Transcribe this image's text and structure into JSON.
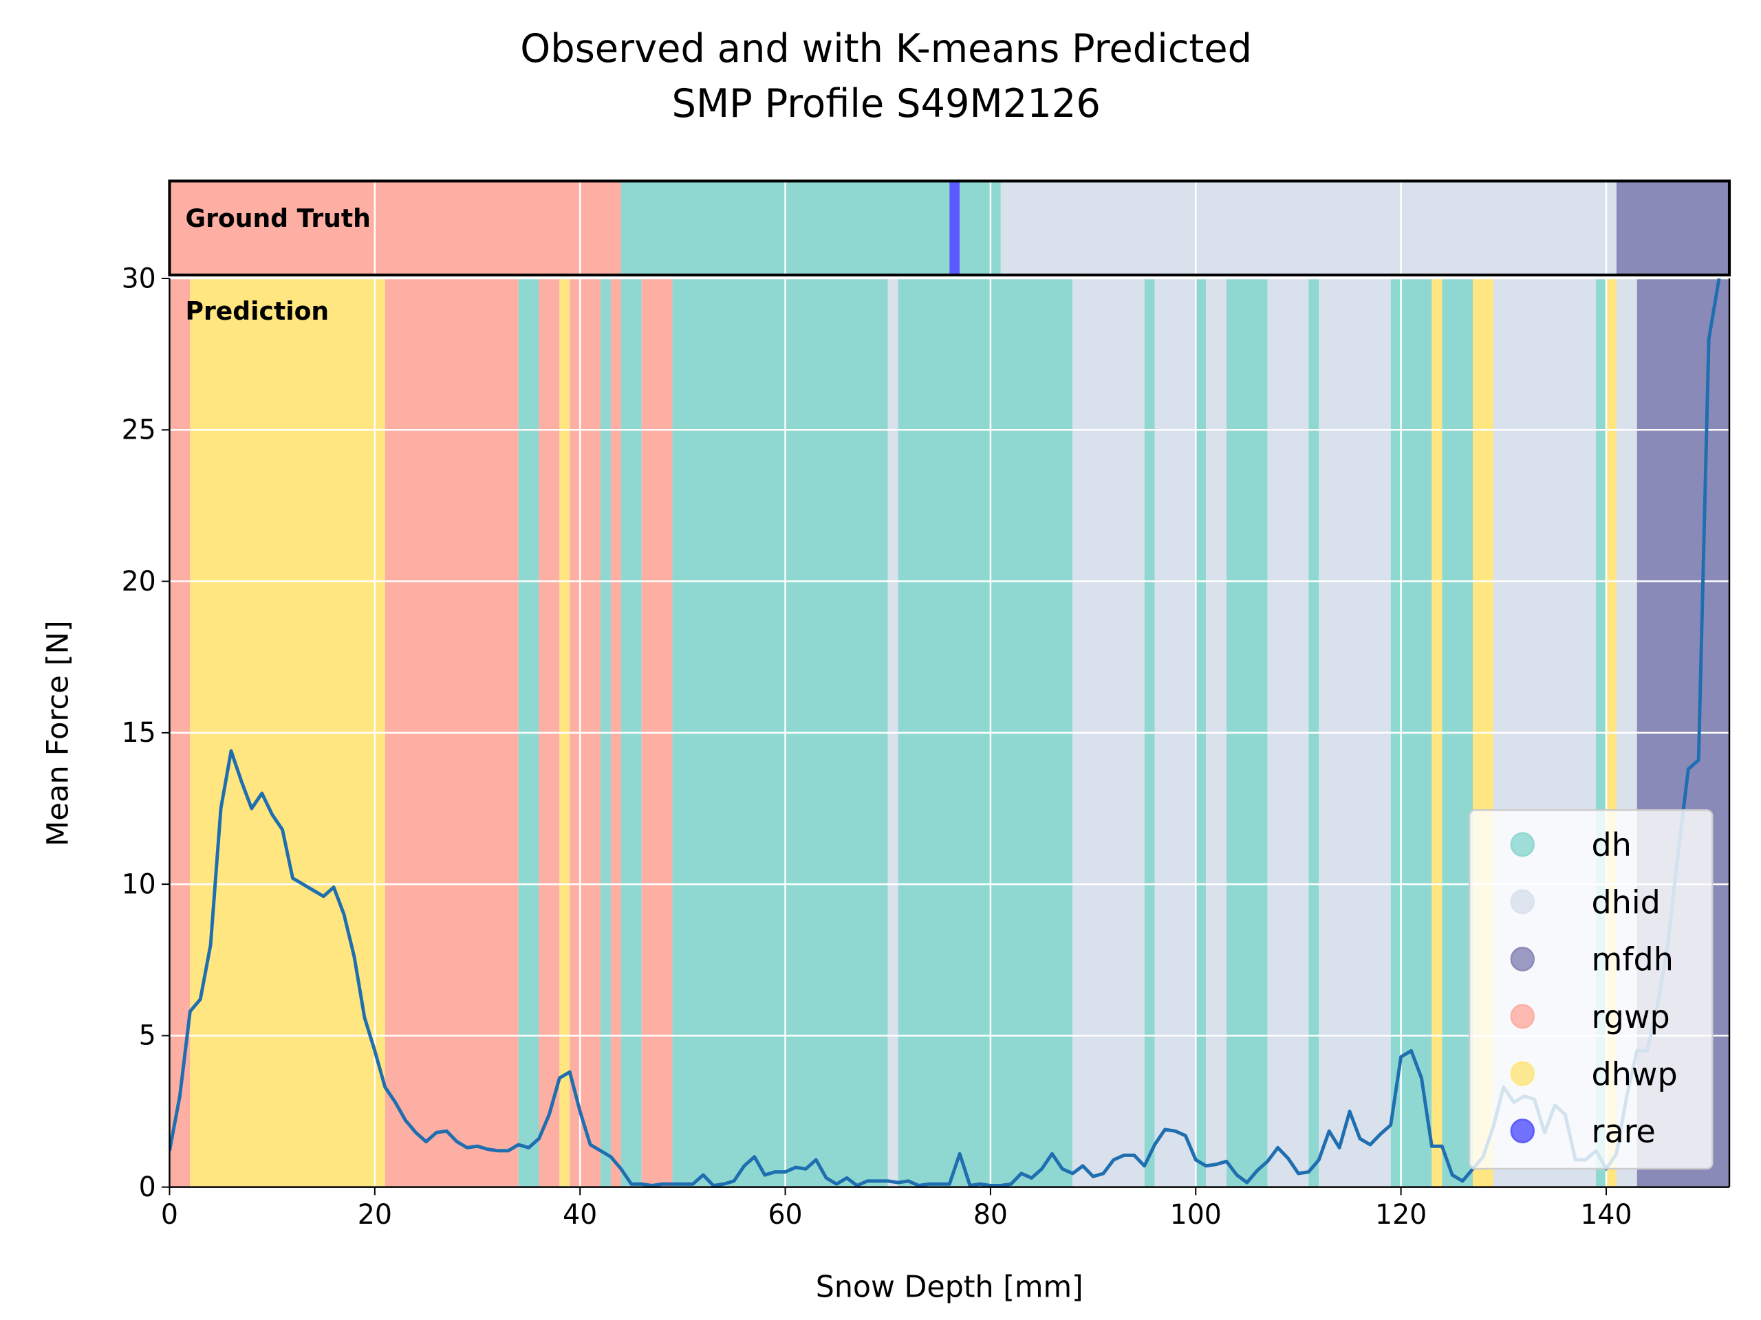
{
  "chart_data": {
    "type": "line",
    "title": [
      "Observed and with K-means Predicted",
      "SMP Profile S49M2126"
    ],
    "xlabel": "Snow Depth [mm]",
    "ylabel": "Mean Force [N]",
    "ground_truth_label": "Ground Truth",
    "prediction_label": "Prediction",
    "xlim": [
      0,
      152
    ],
    "ylim": [
      0,
      30
    ],
    "xticks": [
      0,
      20,
      40,
      60,
      80,
      100,
      120,
      140
    ],
    "yticks": [
      0,
      5,
      10,
      15,
      20,
      25,
      30
    ],
    "grid": true,
    "legend": "lower right",
    "line_color": "#1f6fb0",
    "x": [
      0,
      1,
      2,
      3,
      4,
      5,
      6,
      7,
      8,
      9,
      10,
      11,
      12,
      13,
      14,
      15,
      16,
      17,
      18,
      19,
      20,
      21,
      22,
      23,
      24,
      25,
      26,
      27,
      28,
      29,
      30,
      31,
      32,
      33,
      34,
      35,
      36,
      37,
      38,
      39,
      40,
      41,
      42,
      43,
      44,
      45,
      46,
      47,
      48,
      49,
      50,
      51,
      52,
      53,
      54,
      55,
      56,
      57,
      58,
      59,
      60,
      61,
      62,
      63,
      64,
      65,
      66,
      67,
      68,
      69,
      70,
      71,
      72,
      73,
      74,
      75,
      76,
      77,
      78,
      79,
      80,
      81,
      82,
      83,
      84,
      85,
      86,
      87,
      88,
      89,
      90,
      91,
      92,
      93,
      94,
      95,
      96,
      97,
      98,
      99,
      100,
      101,
      102,
      103,
      104,
      105,
      106,
      107,
      108,
      109,
      110,
      111,
      112,
      113,
      114,
      115,
      116,
      117,
      118,
      119,
      120,
      121,
      122,
      123,
      124,
      125,
      126,
      127,
      128,
      129,
      130,
      131,
      132,
      133,
      134,
      135,
      136,
      137,
      138,
      139,
      140,
      141,
      142,
      143,
      144,
      145,
      146,
      147,
      148,
      149,
      150,
      151
    ],
    "values": [
      1.2,
      3,
      5.8,
      6.2,
      8,
      12.5,
      14.4,
      13.4,
      12.5,
      13,
      12.3,
      11.8,
      10.2,
      10,
      9.8,
      9.6,
      9.9,
      9,
      7.6,
      5.6,
      4.5,
      3.3,
      2.8,
      2.2,
      1.8,
      1.5,
      1.8,
      1.85,
      1.5,
      1.3,
      1.35,
      1.25,
      1.2,
      1.2,
      1.4,
      1.3,
      1.6,
      2.4,
      3.6,
      3.8,
      2.5,
      1.4,
      1.2,
      1,
      0.6,
      0.1,
      0.1,
      0.05,
      0.1,
      0.1,
      0.1,
      0.1,
      0.4,
      0.05,
      0.1,
      0.2,
      0.7,
      1,
      0.4,
      0.5,
      0.5,
      0.65,
      0.6,
      0.9,
      0.3,
      0.1,
      0.3,
      0.05,
      0.2,
      0.2,
      0.2,
      0.15,
      0.2,
      0.05,
      0.1,
      0.1,
      0.1,
      1.1,
      0.05,
      0.1,
      0.05,
      0.05,
      0.1,
      0.45,
      0.3,
      0.6,
      1.1,
      0.6,
      0.45,
      0.7,
      0.35,
      0.45,
      0.9,
      1.05,
      1.05,
      0.7,
      1.4,
      1.9,
      1.85,
      1.7,
      0.9,
      0.7,
      0.75,
      0.85,
      0.4,
      0.15,
      0.55,
      0.85,
      1.3,
      0.95,
      0.45,
      0.5,
      0.9,
      1.85,
      1.3,
      2.5,
      1.6,
      1.4,
      1.75,
      2.05,
      4.3,
      4.5,
      3.6,
      1.35,
      1.35,
      0.4,
      0.2,
      0.6,
      1,
      2,
      3.3,
      2.8,
      3,
      2.9,
      1.8,
      2.7,
      2.4,
      0.9,
      0.9,
      1.2,
      0.6,
      1.1,
      3,
      4.5,
      4.5,
      6,
      8,
      11,
      13.8,
      14.1,
      28,
      30
    ],
    "classes": [
      {
        "name": "dh",
        "color": "#8fd8d2"
      },
      {
        "name": "dhid",
        "color": "#d9e1ed"
      },
      {
        "name": "mfdh",
        "color": "#8a8ab8"
      },
      {
        "name": "rgwp",
        "color": "#fdafa4"
      },
      {
        "name": "dhwp",
        "color": "#ffe680"
      },
      {
        "name": "rare",
        "color": "#5a5aff"
      }
    ],
    "ground_truth": [
      {
        "class": "rgwp",
        "start": 0,
        "end": 44
      },
      {
        "class": "dh",
        "start": 44,
        "end": 76
      },
      {
        "class": "rare",
        "start": 76,
        "end": 77
      },
      {
        "class": "dh",
        "start": 77,
        "end": 81
      },
      {
        "class": "dhid",
        "start": 81,
        "end": 141
      },
      {
        "class": "mfdh",
        "start": 141,
        "end": 152
      }
    ],
    "prediction": [
      {
        "class": "rgwp",
        "start": 0,
        "end": 2
      },
      {
        "class": "dhwp",
        "start": 2,
        "end": 21
      },
      {
        "class": "rgwp",
        "start": 21,
        "end": 34
      },
      {
        "class": "dh",
        "start": 34,
        "end": 36
      },
      {
        "class": "rgwp",
        "start": 36,
        "end": 38
      },
      {
        "class": "dhwp",
        "start": 38,
        "end": 39
      },
      {
        "class": "rgwp",
        "start": 39,
        "end": 42
      },
      {
        "class": "dh",
        "start": 42,
        "end": 43
      },
      {
        "class": "rgwp",
        "start": 43,
        "end": 44
      },
      {
        "class": "dh",
        "start": 44,
        "end": 46
      },
      {
        "class": "rgwp",
        "start": 46,
        "end": 49
      },
      {
        "class": "dh",
        "start": 49,
        "end": 70
      },
      {
        "class": "dhid",
        "start": 70,
        "end": 71
      },
      {
        "class": "dh",
        "start": 71,
        "end": 88
      },
      {
        "class": "dhid",
        "start": 88,
        "end": 95
      },
      {
        "class": "dh",
        "start": 95,
        "end": 96
      },
      {
        "class": "dhid",
        "start": 96,
        "end": 100
      },
      {
        "class": "dh",
        "start": 100,
        "end": 101
      },
      {
        "class": "dhid",
        "start": 101,
        "end": 103
      },
      {
        "class": "dh",
        "start": 103,
        "end": 107
      },
      {
        "class": "dhid",
        "start": 107,
        "end": 111
      },
      {
        "class": "dh",
        "start": 111,
        "end": 112
      },
      {
        "class": "dhid",
        "start": 112,
        "end": 119
      },
      {
        "class": "dh",
        "start": 119,
        "end": 123
      },
      {
        "class": "dhwp",
        "start": 123,
        "end": 124
      },
      {
        "class": "dh",
        "start": 124,
        "end": 127
      },
      {
        "class": "dhwp",
        "start": 127,
        "end": 129
      },
      {
        "class": "dhid",
        "start": 129,
        "end": 139
      },
      {
        "class": "dh",
        "start": 139,
        "end": 140
      },
      {
        "class": "dhwp",
        "start": 140,
        "end": 141
      },
      {
        "class": "dhid",
        "start": 141,
        "end": 143
      },
      {
        "class": "mfdh",
        "start": 143,
        "end": 152
      }
    ]
  }
}
